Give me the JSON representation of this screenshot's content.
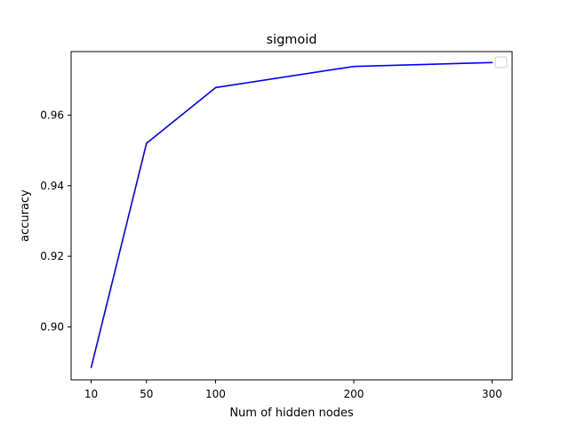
{
  "chart_data": {
    "type": "line",
    "title": "sigmoid",
    "xlabel": "Num of hidden nodes",
    "ylabel": "accuracy",
    "x": [
      10,
      50,
      100,
      200,
      300
    ],
    "series": [
      {
        "values": [
          0.8885,
          0.952,
          0.9678,
          0.9738,
          0.9749
        ],
        "color": "#0000ff"
      }
    ],
    "xlim": [
      -4.5,
      314.5
    ],
    "ylim": [
      0.885,
      0.978
    ],
    "xticks": [
      "10",
      "50",
      "100",
      "200",
      "300"
    ],
    "yticks": [
      "0.90",
      "0.92",
      "0.94",
      "0.96"
    ],
    "grid": false,
    "legend": {
      "placement": "top-right",
      "entries": []
    }
  }
}
